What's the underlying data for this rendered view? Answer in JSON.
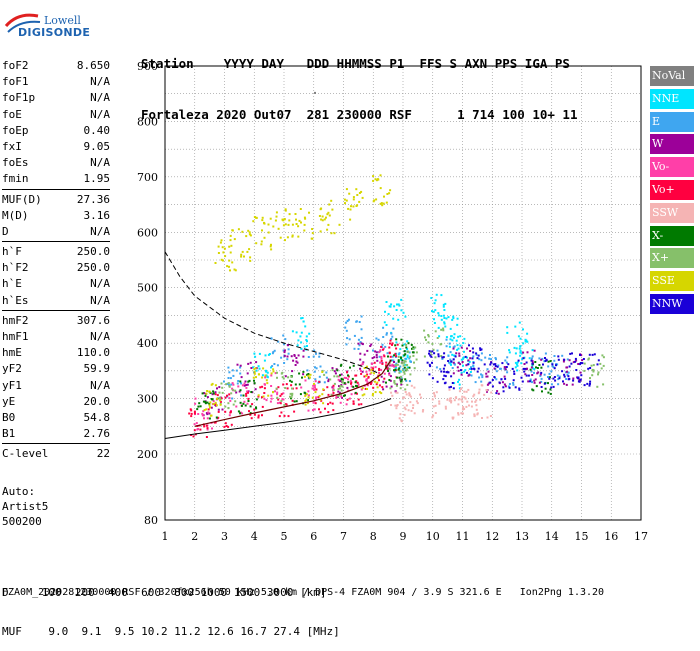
{
  "logo": {
    "line1": "Lowell",
    "line2": "DIGISONDE"
  },
  "header": {
    "row1": "Station    YYYY DAY   DDD HHMMSS P1  FFS S AXN PPS IGA PS",
    "row2": "Fortaleza 2020 Out07  281 230000 RSF      1 714 100 10+ 11"
  },
  "params": {
    "group1": [
      {
        "k": "foF2",
        "v": "8.650"
      },
      {
        "k": "foF1",
        "v": "N/A"
      },
      {
        "k": "foF1p",
        "v": "N/A"
      },
      {
        "k": "foE",
        "v": "N/A"
      },
      {
        "k": "foEp",
        "v": "0.40"
      },
      {
        "k": "fxI",
        "v": "9.05"
      },
      {
        "k": "foEs",
        "v": "N/A"
      },
      {
        "k": "fmin",
        "v": "1.95"
      }
    ],
    "group2": [
      {
        "k": "MUF(D)",
        "v": "27.36"
      },
      {
        "k": "M(D)",
        "v": "3.16"
      },
      {
        "k": "D",
        "v": "N/A"
      }
    ],
    "group3": [
      {
        "k": "h`F",
        "v": "250.0"
      },
      {
        "k": "h`F2",
        "v": "250.0"
      },
      {
        "k": "h`E",
        "v": "N/A"
      },
      {
        "k": "h`Es",
        "v": "N/A"
      }
    ],
    "group4": [
      {
        "k": "hmF2",
        "v": "307.6"
      },
      {
        "k": "hmF1",
        "v": "N/A"
      },
      {
        "k": "hmE",
        "v": "110.0"
      },
      {
        "k": "yF2",
        "v": "59.9"
      },
      {
        "k": "yF1",
        "v": "N/A"
      },
      {
        "k": "yE",
        "v": "20.0"
      },
      {
        "k": "B0",
        "v": "54.8"
      },
      {
        "k": "B1",
        "v": "2.76"
      }
    ],
    "group5": [
      {
        "k": "C-level",
        "v": "22"
      }
    ]
  },
  "auto": {
    "line1": "Auto:",
    "line2": "Artist5",
    "line3": "500200"
  },
  "legend": [
    {
      "label": "NoVal",
      "color": "#808080"
    },
    {
      "label": "NNE",
      "color": "#00e5ff"
    },
    {
      "label": "E",
      "color": "#3fa6f0"
    },
    {
      "label": "W",
      "color": "#9c0099"
    },
    {
      "label": "Vo-",
      "color": "#ff3fa8"
    },
    {
      "label": "Vo+",
      "color": "#ff0040"
    },
    {
      "label": "SSW",
      "color": "#f5b4b4"
    },
    {
      "label": "X-",
      "color": "#007a00"
    },
    {
      "label": "X+",
      "color": "#86c06a"
    },
    {
      "label": "SSE",
      "color": "#d6d600"
    },
    {
      "label": "NNW",
      "color": "#1a00d8"
    }
  ],
  "chart_data": {
    "type": "scatter",
    "x_ticks": [
      "1",
      "2",
      "3",
      "4",
      "5",
      "6",
      "7",
      "8",
      "9",
      "10",
      "11",
      "12",
      "13",
      "14",
      "15",
      "16",
      "17"
    ],
    "y_ticks": [
      "80",
      "200",
      "300",
      "400",
      "500",
      "600",
      "700",
      "800",
      "900"
    ],
    "xlim": [
      1,
      17
    ],
    "y_note": "virtual height axis (km), non-linear: 80 at bottom, then 200-900",
    "grid": true,
    "series": [
      {
        "name": "NoVal",
        "color": "#808080",
        "x": [
          5.9,
          6.0
        ],
        "y": [
          865,
          870
        ]
      },
      {
        "name": "NNE",
        "color": "#00e5ff",
        "x": [
          4.2,
          5.6,
          8.7,
          9.0,
          10.2,
          10.5,
          10.8,
          11.0,
          12.8,
          13.1
        ],
        "y": [
          360,
          420,
          450,
          380,
          460,
          420,
          390,
          350,
          410,
          380
        ]
      },
      {
        "name": "E",
        "color": "#3fa6f0",
        "x": [
          3.2,
          4.8,
          6.1,
          7.3,
          8.3,
          8.9,
          10.4,
          11.6,
          12.4,
          13.6,
          14.2
        ],
        "y": [
          330,
          390,
          360,
          420,
          400,
          360,
          380,
          360,
          350,
          360,
          355
        ]
      },
      {
        "name": "W",
        "color": "#9c0099",
        "x": [
          2.6,
          3.7,
          5.3,
          6.8,
          7.8,
          8.6,
          10.9,
          12.1,
          13.3,
          14.7
        ],
        "y": [
          295,
          340,
          370,
          330,
          380,
          340,
          370,
          340,
          360,
          355
        ]
      },
      {
        "name": "Vo-",
        "color": "#ff3fa8",
        "x": [
          2.3,
          3.4,
          4.6,
          5.8,
          6.9,
          7.7,
          8.4
        ],
        "y": [
          275,
          300,
          320,
          310,
          320,
          340,
          370
        ]
      },
      {
        "name": "Vo+",
        "color": "#ff0040",
        "x": [
          2.1,
          2.9,
          4.0,
          5.1,
          6.3,
          7.4,
          8.1,
          8.5
        ],
        "y": [
          260,
          280,
          295,
          300,
          305,
          320,
          340,
          380
        ]
      },
      {
        "name": "SSW",
        "color": "#f5b4b4",
        "x": [
          8.9,
          9.3,
          10.3,
          10.8,
          11.2,
          11.6
        ],
        "y": [
          290,
          295,
          290,
          292,
          298,
          296
        ]
      },
      {
        "name": "X-",
        "color": "#007a00",
        "x": [
          2.4,
          3.8,
          5.5,
          7.1,
          8.7,
          9.0,
          13.6
        ],
        "y": [
          285,
          305,
          320,
          335,
          360,
          380,
          340
        ]
      },
      {
        "name": "X+",
        "color": "#86c06a",
        "x": [
          3.1,
          4.9,
          6.6,
          8.8,
          9.1,
          10.0,
          15.4
        ],
        "y": [
          300,
          320,
          330,
          345,
          370,
          400,
          352
        ]
      },
      {
        "name": "SSE",
        "color": "#d6d600",
        "x": [
          3.0,
          3.5,
          4.2,
          4.9,
          5.6,
          6.5,
          7.3,
          8.2,
          2.5,
          4.3,
          6.0,
          7.9
        ],
        "y": [
          560,
          580,
          600,
          615,
          620,
          630,
          650,
          680,
          300,
          330,
          320,
          330
        ]
      },
      {
        "name": "NNW",
        "color": "#1a00d8",
        "x": [
          10.1,
          10.6,
          11.4,
          12.2,
          13.0,
          13.9,
          14.6,
          15.2
        ],
        "y": [
          360,
          350,
          370,
          340,
          345,
          350,
          355,
          352
        ]
      }
    ]
  },
  "footer": {
    "row1": "D     100  200  400  600  800 1000 1500 3000 [km]",
    "row2": "MUF    9.0  9.1  9.5 10.2 11.2 12.6 16.7 27.4 [MHz]"
  },
  "filename": "FZA0M_2020281230000.RSF / 320fx256h 50 kHz 5.0 km / DPS-4 FZA0M 904 / 3.9 S 321.6 E   Ion2Png 1.3.20"
}
